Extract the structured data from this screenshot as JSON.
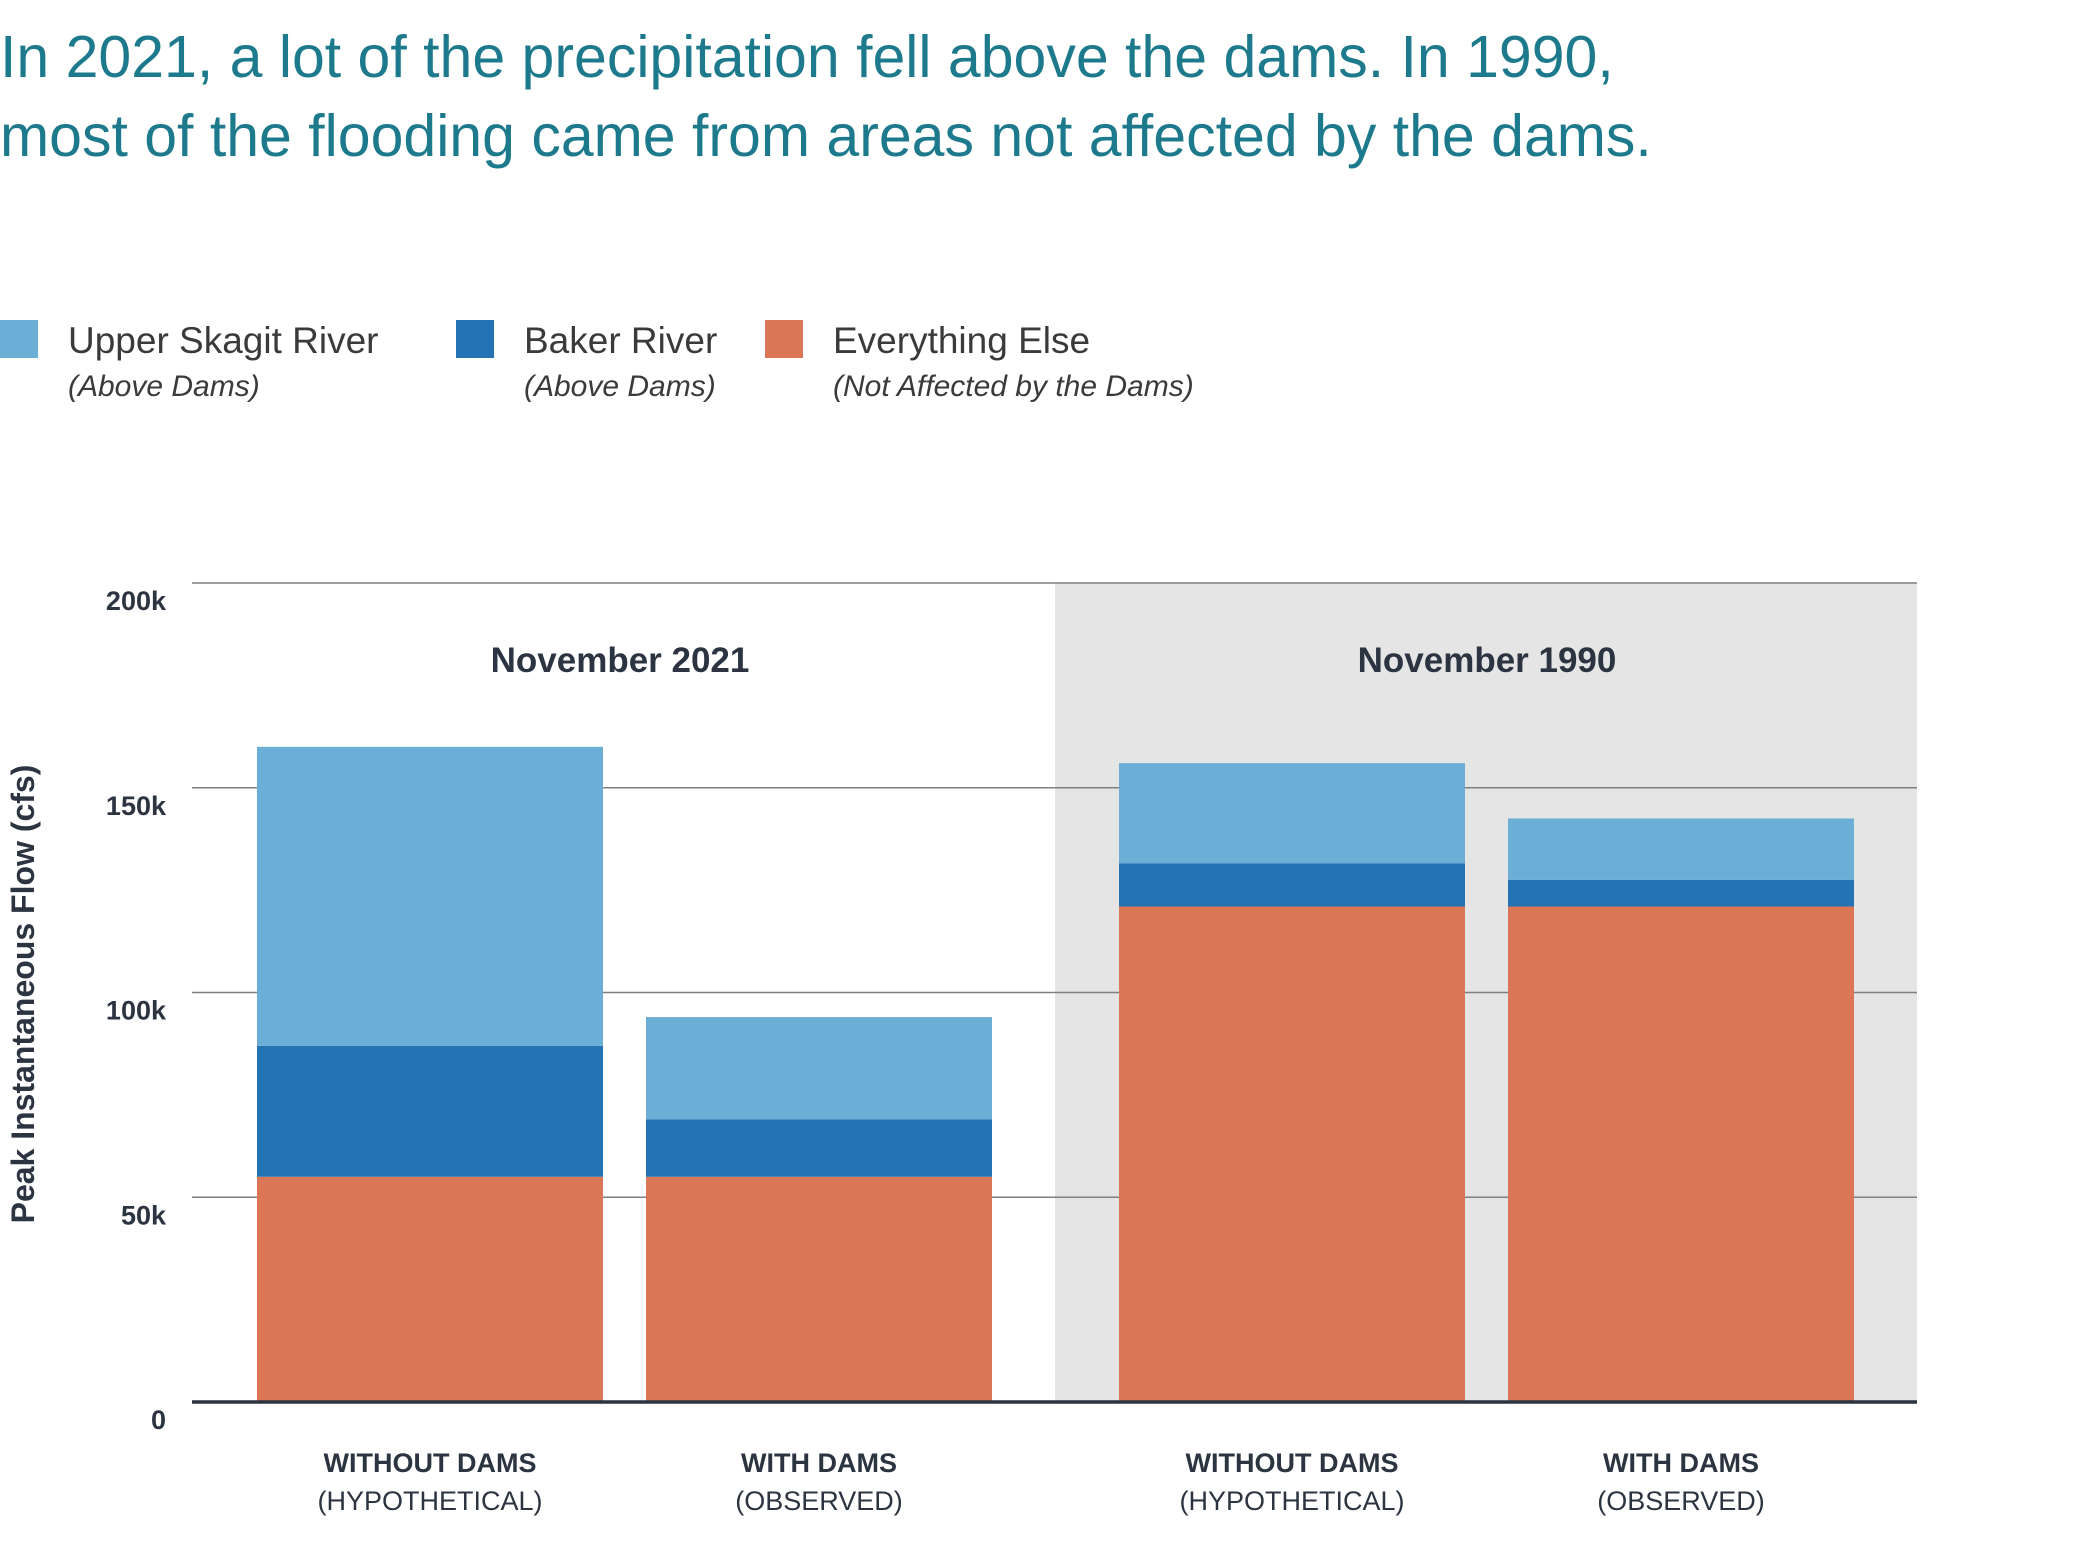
{
  "title_lines": [
    "In 2021, a lot of the precipitation fell above the dams. In 1990,",
    "most of the flooding came from areas not affected by the dams."
  ],
  "chart_data": {
    "type": "bar",
    "stacked": true,
    "ylabel": "Peak Instantaneous Flow (cfs)",
    "ylim": [
      0,
      200000
    ],
    "yticks": [
      {
        "value": 0,
        "label": "0"
      },
      {
        "value": 50000,
        "label": "50k"
      },
      {
        "value": 100000,
        "label": "100k"
      },
      {
        "value": 150000,
        "label": "150k"
      },
      {
        "value": 200000,
        "label": "200k"
      }
    ],
    "grid": true,
    "legend_position": "top-left",
    "groups": [
      {
        "label": "November 2021",
        "shaded": false,
        "bars": [
          0,
          1
        ]
      },
      {
        "label": "November 1990",
        "shaded": true,
        "bars": [
          2,
          3
        ]
      }
    ],
    "categories": [
      {
        "label": "WITHOUT DAMS",
        "sublabel": "(HYPOTHETICAL)"
      },
      {
        "label": "WITH DAMS",
        "sublabel": "(OBSERVED)"
      },
      {
        "label": "WITHOUT DAMS",
        "sublabel": "(HYPOTHETICAL)"
      },
      {
        "label": "WITH DAMS",
        "sublabel": "(OBSERVED)"
      }
    ],
    "series": [
      {
        "name": "Everything Else",
        "note": "(Not Affected by the Dams)",
        "color": "#db7757",
        "values": [
          55000,
          55000,
          121000,
          121000
        ]
      },
      {
        "name": "Baker River",
        "note": "(Above Dams)",
        "color": "#2272b4",
        "values": [
          32000,
          14000,
          10500,
          6500
        ]
      },
      {
        "name": "Upper Skagit River",
        "note": "(Above Dams)",
        "color": "#6baed6",
        "values": [
          73000,
          25000,
          24500,
          15000
        ]
      }
    ],
    "legend_order": [
      2,
      1,
      0
    ]
  },
  "colors": {
    "title": "#1d7a8c",
    "text": "#2b3440",
    "grid": "#7f7f7f",
    "axis": "#2b3440",
    "shade": "#e5e5e5"
  }
}
